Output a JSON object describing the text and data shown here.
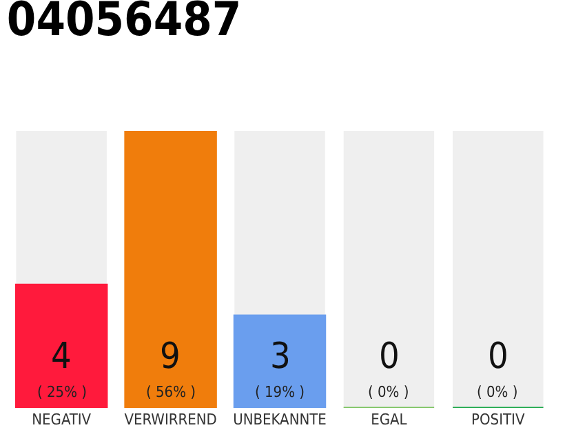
{
  "chart_data": {
    "type": "bar",
    "title": "04056487",
    "categories": [
      "NEGATIV",
      "VERWIRREND",
      "UNBEKANNTE",
      "EGAL",
      "POSITIV"
    ],
    "values": [
      4,
      9,
      3,
      0,
      0
    ],
    "colors": [
      "#ff1a3c",
      "#f07d0c",
      "#6a9eee",
      "#7dc462",
      "#1ea84a"
    ],
    "value_labels": [
      "4\n( 25% )",
      "9\n( 56% )",
      "3\n( 19% )",
      "0\n( 0% )",
      "0\n( 0% )"
    ],
    "ylim": [
      0,
      9
    ],
    "grid": false,
    "tick_labels": "x"
  }
}
